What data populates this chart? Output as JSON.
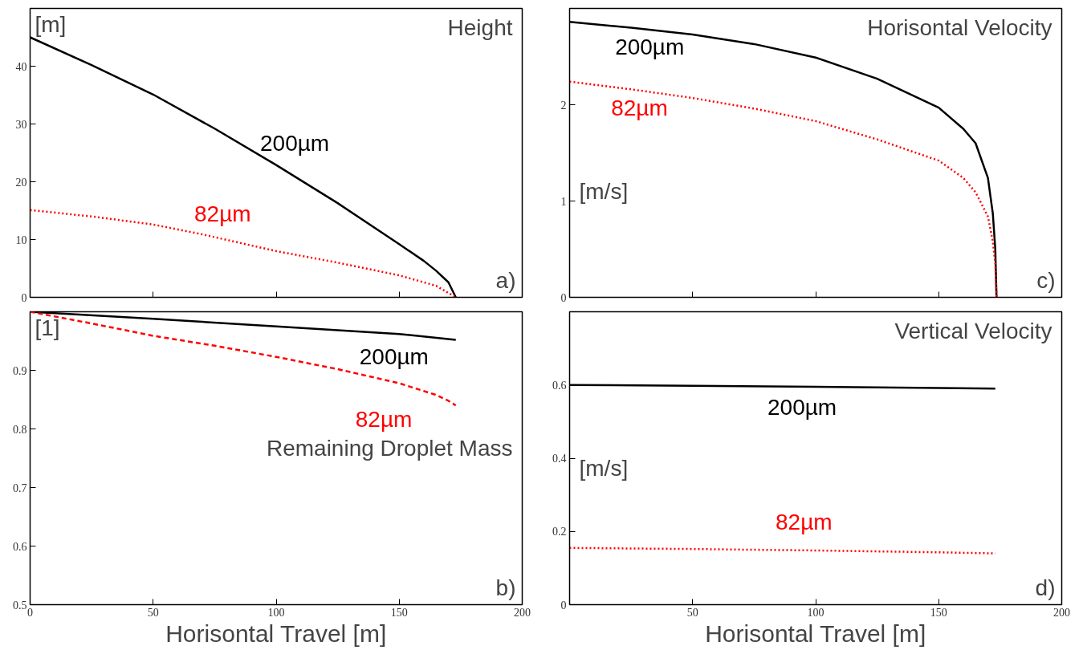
{
  "chart_data": [
    {
      "type": "line",
      "title": "Height",
      "ylabel": "[m]",
      "annotations": [
        "a)"
      ],
      "xlim": [
        0,
        200
      ],
      "ylim": [
        0,
        50
      ],
      "xticks": [
        0,
        50,
        100,
        150,
        200
      ],
      "yticks": [
        0,
        10,
        20,
        30,
        40
      ],
      "tick_labels": "y",
      "grid": false,
      "series": [
        {
          "name": "200µm",
          "color": "#000000",
          "line_style": "solid",
          "x": [
            0,
            25,
            50,
            75,
            100,
            125,
            150,
            160,
            165,
            170,
            173
          ],
          "values": [
            45,
            40.2,
            35.1,
            29.2,
            22.9,
            16.3,
            9.2,
            6.3,
            4.6,
            2.6,
            0
          ]
        },
        {
          "name": "82µm",
          "color": "#ff0000",
          "line_style": "dotted",
          "x": [
            0,
            25,
            50,
            70,
            100,
            125,
            150,
            165,
            173
          ],
          "values": [
            15.1,
            14,
            12.6,
            10.9,
            8.0,
            6.0,
            3.8,
            2.0,
            0
          ]
        }
      ]
    },
    {
      "type": "line",
      "title": "Horisontal Velocity",
      "ylabel": "[m/s]",
      "annotations": [
        "c)"
      ],
      "xlim": [
        0,
        200
      ],
      "ylim": [
        0,
        3
      ],
      "xticks": [
        0,
        50,
        100,
        150,
        200
      ],
      "yticks": [
        0,
        1,
        2
      ],
      "tick_labels": "y",
      "grid": false,
      "series": [
        {
          "name": "200µm",
          "color": "#000000",
          "line_style": "solid",
          "x": [
            0,
            25,
            50,
            75,
            100,
            125,
            150,
            160,
            165,
            170,
            172,
            173,
            173.5
          ],
          "values": [
            2.86,
            2.8,
            2.73,
            2.63,
            2.49,
            2.27,
            1.97,
            1.75,
            1.6,
            1.24,
            0.87,
            0.5,
            0
          ]
        },
        {
          "name": "82µm",
          "color": "#ff0000",
          "line_style": "dotted",
          "x": [
            0,
            25,
            50,
            75,
            100,
            125,
            150,
            160,
            165,
            170,
            172,
            173,
            173.5
          ],
          "values": [
            2.24,
            2.16,
            2.07,
            1.96,
            1.83,
            1.64,
            1.42,
            1.24,
            1.09,
            0.84,
            0.58,
            0.35,
            0
          ]
        }
      ]
    },
    {
      "type": "line",
      "title": "Remaining Droplet Mass",
      "ylabel": "[1]",
      "xlabel": "Horisontal Travel [m]",
      "annotations": [
        "b)"
      ],
      "xlim": [
        0,
        200
      ],
      "ylim": [
        0.5,
        1.0
      ],
      "xticks": [
        0,
        50,
        100,
        150,
        200
      ],
      "yticks": [
        0.5,
        0.6,
        0.7,
        0.8,
        0.9
      ],
      "grid": false,
      "series": [
        {
          "name": "200µm",
          "color": "#000000",
          "line_style": "solid",
          "x": [
            0,
            50,
            100,
            150,
            173
          ],
          "values": [
            1.0,
            0.988,
            0.975,
            0.962,
            0.952
          ]
        },
        {
          "name": "82µm",
          "color": "#ff0000",
          "line_style": "dashed",
          "x": [
            0,
            25,
            50,
            75,
            100,
            125,
            150,
            165,
            170,
            173
          ],
          "values": [
            1.0,
            0.98,
            0.959,
            0.942,
            0.923,
            0.902,
            0.878,
            0.858,
            0.848,
            0.84
          ]
        }
      ]
    },
    {
      "type": "line",
      "title": "Vertical Velocity",
      "ylabel": "[m/s]",
      "xlabel": "Horisontal Travel [m]",
      "annotations": [
        "d)"
      ],
      "xlim": [
        0,
        200
      ],
      "ylim": [
        0,
        0.8
      ],
      "xticks": [
        50,
        100,
        150,
        200
      ],
      "yticks": [
        0,
        0.2,
        0.4,
        0.6
      ],
      "grid": false,
      "series": [
        {
          "name": "200µm",
          "color": "#000000",
          "line_style": "solid",
          "x": [
            0,
            50,
            100,
            150,
            173
          ],
          "values": [
            0.6,
            0.598,
            0.595,
            0.592,
            0.59
          ]
        },
        {
          "name": "82µm",
          "color": "#ff0000",
          "line_style": "dotted",
          "x": [
            0,
            50,
            100,
            150,
            173
          ],
          "values": [
            0.155,
            0.152,
            0.148,
            0.143,
            0.14
          ]
        }
      ]
    }
  ]
}
